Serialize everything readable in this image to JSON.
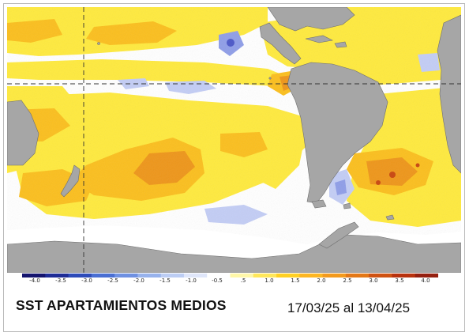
{
  "title": "SST APARTAMIENTOS MEDIOS",
  "period": "17/03/25 al 13/04/25",
  "colorbar": {
    "labels": [
      "-4.0",
      "-3.5",
      "-3.0",
      "-2.5",
      "-2.0",
      "-1.5",
      "-1.0",
      "-0.5",
      ".5",
      "1.0",
      "1.5",
      "2.0",
      "2.5",
      "3.0",
      "3.5",
      "4.0"
    ],
    "colors": [
      "#14146e",
      "#1e2c96",
      "#2d4bb9",
      "#4a6fd3",
      "#6f91e2",
      "#97b2ec",
      "#bccdf4",
      "#dfe6fa",
      "#ffffff",
      "#fff7a8",
      "#ffe75a",
      "#ffd023",
      "#fdb622",
      "#f39a1d",
      "#e37817",
      "#cf5212",
      "#b8320e",
      "#952010"
    ]
  },
  "colors": {
    "land": "#a6a6a6",
    "ice": "#ffffff",
    "ocean_neutral": "#ffffff",
    "warm_light": "#ffea3e",
    "warm_mid": "#fbbf1e",
    "warm_strong": "#ee961a",
    "warm_extreme": "#c9470f",
    "cold_light": "#c3cdf5",
    "cold_mid": "#8f9ee8",
    "cold_strong": "#4c58c8"
  }
}
